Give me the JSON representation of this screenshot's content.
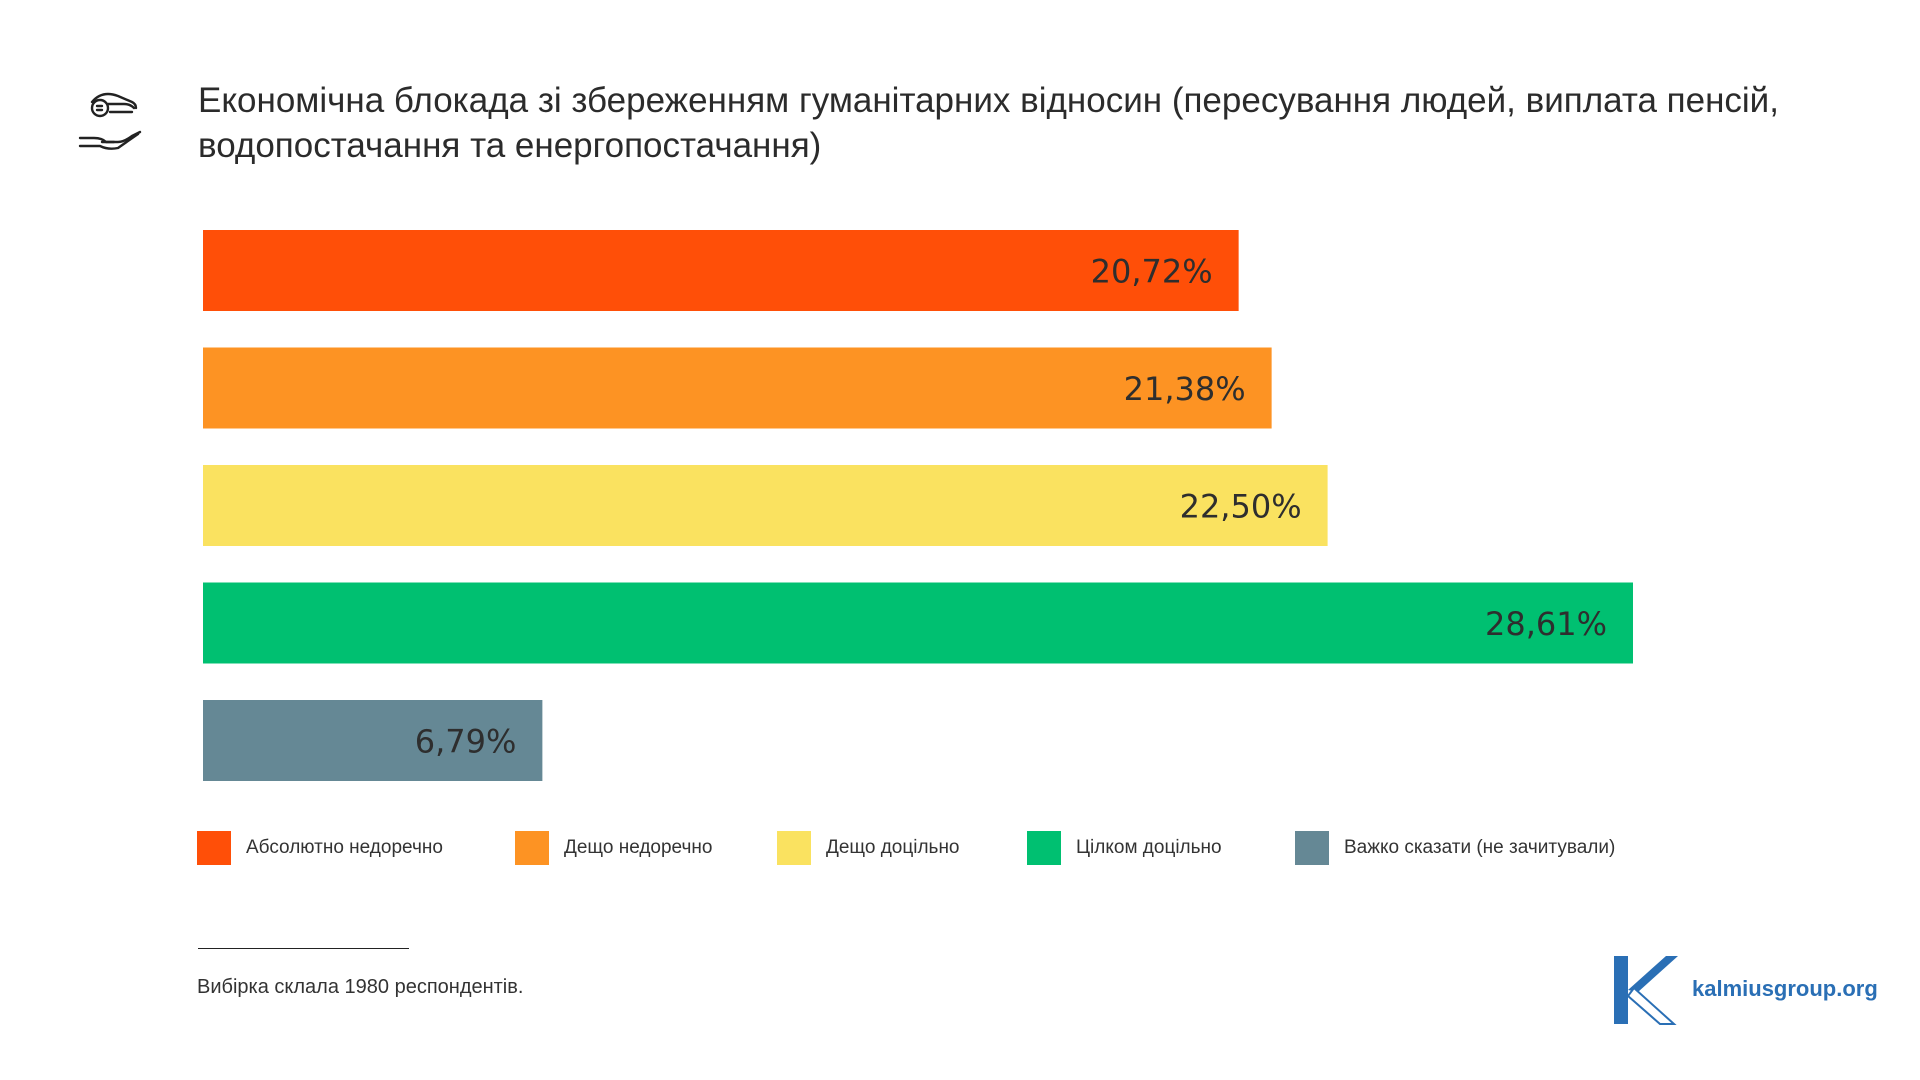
{
  "title": "Економічна блокада зі збереженням гуманітарних відносин (пересування людей, виплата пенсій, водопостачання та енергопостачання)",
  "header_icon": "hand-coin-icon",
  "chart_data": {
    "type": "bar",
    "orientation": "horizontal",
    "categories": [
      "Абсолютно недоречно",
      "Дещо недоречно",
      "Дещо доцільно",
      "Цілком доцільно",
      "Важко сказати (не зачитували)"
    ],
    "values": [
      20.72,
      21.38,
      22.5,
      28.61,
      6.79
    ],
    "value_labels": [
      "20,72%",
      "21,38%",
      "22,50%",
      "28,61%",
      "6,79%"
    ],
    "colors": [
      "#ff4f08",
      "#fd9323",
      "#fae260",
      "#00c071",
      "#658895"
    ],
    "xlim": [
      0,
      30
    ],
    "grid": false,
    "legend_position": "bottom"
  },
  "legend": [
    {
      "label": "Абсолютно недоречно",
      "color": "#ff4f08"
    },
    {
      "label": "Дещо недоречно",
      "color": "#fd9323"
    },
    {
      "label": "Дещо доцільно",
      "color": "#fae260"
    },
    {
      "label": "Цілком доцільно",
      "color": "#00c071"
    },
    {
      "label": "Важко сказати (не зачитували)",
      "color": "#658895"
    }
  ],
  "footnote": "Вибірка склала 1980 респондентів.",
  "brand": {
    "logo_letter": "K",
    "site": "kalmiusgroup.org",
    "color": "#2a6fb5"
  }
}
